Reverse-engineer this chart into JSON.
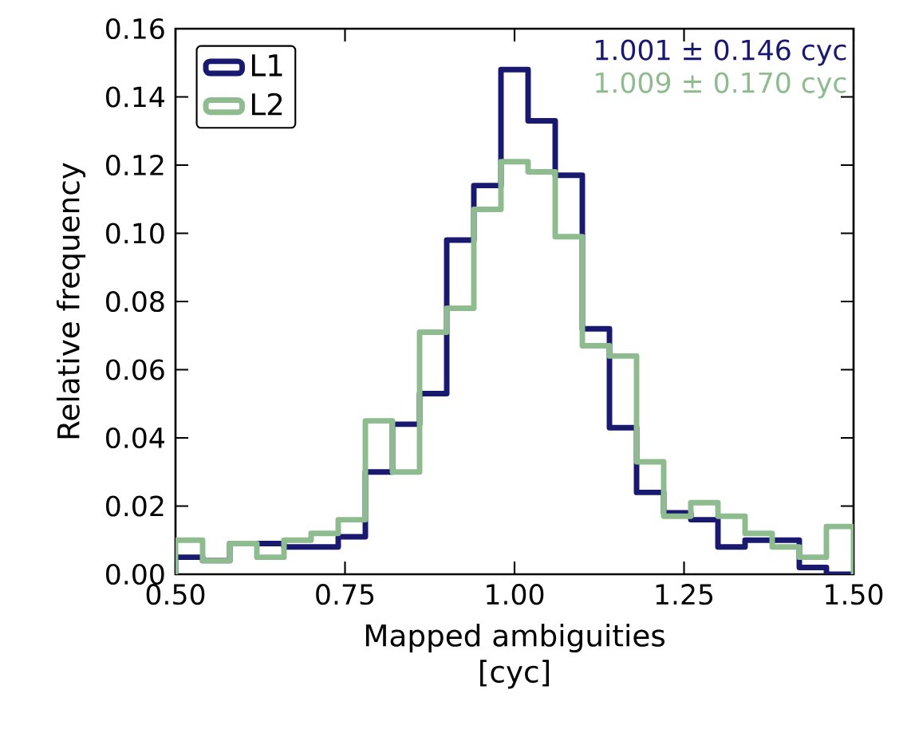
{
  "chart_data": {
    "type": "histogram",
    "xlabel": "Mapped ambiguities\n[cyc]",
    "ylabel": "Relative frequency",
    "bins": [
      0.5,
      0.54,
      0.58,
      0.62,
      0.66,
      0.7,
      0.74,
      0.78,
      0.82,
      0.86,
      0.9,
      0.94,
      0.98,
      1.02,
      1.06,
      1.1,
      1.14,
      1.18,
      1.22,
      1.26,
      1.3,
      1.34,
      1.38,
      1.42,
      1.46,
      1.5
    ],
    "series": [
      {
        "name": "L1",
        "color": "#191970",
        "values": [
          0.005,
          0.004,
          0.009,
          0.009,
          0.008,
          0.008,
          0.011,
          0.03,
          0.044,
          0.053,
          0.098,
          0.114,
          0.148,
          0.133,
          0.117,
          0.072,
          0.043,
          0.024,
          0.018,
          0.016,
          0.008,
          0.01,
          0.01,
          0.002,
          0.0
        ]
      },
      {
        "name": "L2",
        "color": "#8fbc8f",
        "values": [
          0.01,
          0.004,
          0.009,
          0.005,
          0.01,
          0.012,
          0.016,
          0.045,
          0.03,
          0.071,
          0.078,
          0.107,
          0.121,
          0.118,
          0.099,
          0.067,
          0.064,
          0.033,
          0.017,
          0.021,
          0.017,
          0.012,
          0.008,
          0.005,
          0.014
        ]
      }
    ],
    "annotations": [
      "1.001 ± 0.146 cyc",
      "1.009 ± 0.170 cyc"
    ],
    "xlim": [
      0.5,
      1.5
    ],
    "ylim": [
      0,
      0.16
    ],
    "xticks": [
      {
        "value": 0.5,
        "label": "0.50"
      },
      0.75,
      {
        "value": 1.0,
        "label": "1.00"
      },
      {
        "value": 1.25,
        "label": "1.25"
      },
      {
        "value": 1.5,
        "label": "1.50"
      }
    ],
    "yticks": [
      {
        "value": 0,
        "label": "0.00"
      },
      0.02,
      0.04,
      0.06,
      0.08,
      {
        "value": 0.1,
        "label": "0.10"
      },
      0.12,
      0.14,
      0.16
    ],
    "legend": "top left",
    "grid": false
  }
}
